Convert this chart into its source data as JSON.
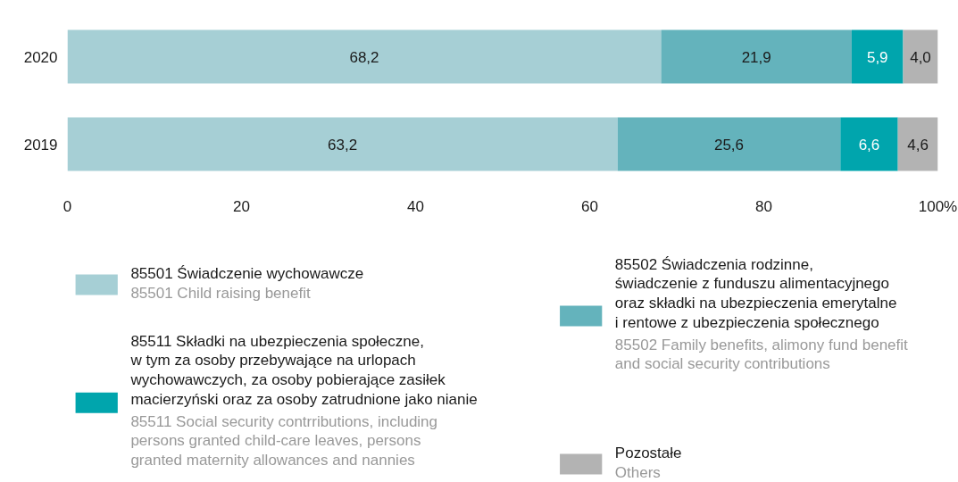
{
  "chart_data": {
    "type": "bar",
    "orientation": "horizontal",
    "stacked": true,
    "categories": [
      "2020",
      "2019"
    ],
    "series": [
      {
        "name": "85501 Świadczenie wychowawcze\n\n85501 Child raising benefit",
        "color": "#a6cfd5",
        "values": [
          68.2,
          63.2
        ],
        "value_labels": [
          "68,2",
          "63,2"
        ]
      },
      {
        "name": "85502 Świadczenia rodzinne,\nświadczenie  z funduszu alimentacyjnego\noraz składki na  ubezpieczenia emerytalne\ni rentowe  z ubezpieczenia społecznego\n\n85502 Family benefits, alimony fund benefit\nand social security contributions",
        "color": "#64b3bc",
        "values": [
          21.9,
          25.6
        ],
        "value_labels": [
          "21,9",
          "25,6"
        ]
      },
      {
        "name": "85511 Składki na ubezpieczenia społeczne,\nw tym za osoby przebywające na urlopach\nwychowawczych, za osoby pobierające zasiłek\nmacierzyński oraz za osoby zatrudnione jako nianie\n\n85511 Social security contrributions, including\npersons granted child-care leaves, persons\ngranted maternity allowances and nannies",
        "color": "#00a5ad",
        "values": [
          5.9,
          6.6
        ],
        "value_labels": [
          "5,9",
          "6,6"
        ]
      },
      {
        "name": "Pozostałe\n\nOthers",
        "color": "#b3b3b3",
        "values": [
          4.0,
          4.6
        ],
        "value_labels": [
          "4,0",
          "4,6"
        ]
      }
    ],
    "xlim": [
      0,
      100
    ],
    "xticks": [
      0,
      20,
      40,
      60,
      80,
      {
        "value": 100,
        "label": "100%"
      }
    ],
    "grid": false,
    "legend": "bottom"
  }
}
